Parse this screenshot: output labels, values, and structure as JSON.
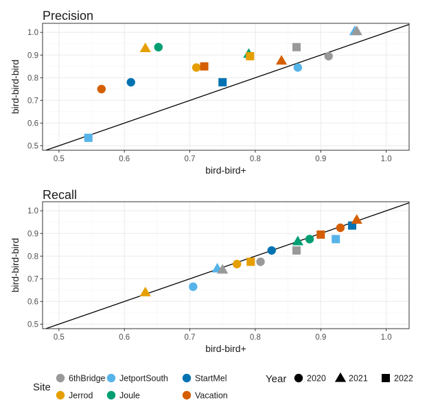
{
  "chart_data": [
    {
      "type": "scatter",
      "title": "Precision",
      "xlabel": "bird-bird+",
      "ylabel": "bird-bird-bird",
      "xlim": [
        0.475,
        1.035
      ],
      "ylim": [
        0.48,
        1.04
      ],
      "xticks": [
        0.5,
        0.6,
        0.7,
        0.8,
        0.9,
        1.0
      ],
      "xtick_labels": [
        "0.5",
        "0.6",
        "0.7",
        "0.8",
        "0.9",
        "1.0"
      ],
      "yticks": [
        0.5,
        0.6,
        0.7,
        0.8,
        0.9,
        1.0
      ],
      "ytick_labels": [
        "0.5",
        "0.6",
        "0.7",
        "0.8",
        "0.9",
        "1.0"
      ],
      "reference_line": "y = x",
      "points": [
        {
          "x": 0.545,
          "y": 0.535,
          "site": "JetportSouth",
          "year": "2022"
        },
        {
          "x": 0.565,
          "y": 0.75,
          "site": "Vacation",
          "year": "2020"
        },
        {
          "x": 0.61,
          "y": 0.78,
          "site": "StartMel",
          "year": "2020"
        },
        {
          "x": 0.632,
          "y": 0.93,
          "site": "Jerrod",
          "year": "2021"
        },
        {
          "x": 0.652,
          "y": 0.935,
          "site": "Joule",
          "year": "2020"
        },
        {
          "x": 0.71,
          "y": 0.845,
          "site": "Jerrod",
          "year": "2020"
        },
        {
          "x": 0.722,
          "y": 0.85,
          "site": "Vacation",
          "year": "2022"
        },
        {
          "x": 0.75,
          "y": 0.78,
          "site": "StartMel",
          "year": "2022"
        },
        {
          "x": 0.79,
          "y": 0.905,
          "site": "Joule",
          "year": "2021"
        },
        {
          "x": 0.792,
          "y": 0.895,
          "site": "Jerrod",
          "year": "2022"
        },
        {
          "x": 0.84,
          "y": 0.875,
          "site": "Vacation",
          "year": "2021"
        },
        {
          "x": 0.863,
          "y": 0.935,
          "site": "6thBridge",
          "year": "2022"
        },
        {
          "x": 0.865,
          "y": 0.845,
          "site": "JetportSouth",
          "year": "2020"
        },
        {
          "x": 0.912,
          "y": 0.895,
          "site": "6thBridge",
          "year": "2020"
        },
        {
          "x": 0.952,
          "y": 1.005,
          "site": "JetportSouth",
          "year": "2021"
        },
        {
          "x": 0.955,
          "y": 1.005,
          "site": "6thBridge",
          "year": "2021"
        }
      ]
    },
    {
      "type": "scatter",
      "title": "Recall",
      "xlabel": "bird-bird+",
      "ylabel": "bird-bird-bird",
      "xlim": [
        0.475,
        1.035
      ],
      "ylim": [
        0.48,
        1.04
      ],
      "xticks": [
        0.5,
        0.6,
        0.7,
        0.8,
        0.9,
        1.0
      ],
      "xtick_labels": [
        "0.5",
        "0.6",
        "0.7",
        "0.8",
        "0.9",
        "1.0"
      ],
      "yticks": [
        0.5,
        0.6,
        0.7,
        0.8,
        0.9,
        1.0
      ],
      "ytick_labels": [
        "0.5",
        "0.6",
        "0.7",
        "0.8",
        "0.9",
        "1.0"
      ],
      "reference_line": "y = x",
      "points": [
        {
          "x": 0.632,
          "y": 0.64,
          "site": "Jerrod",
          "year": "2021"
        },
        {
          "x": 0.705,
          "y": 0.665,
          "site": "JetportSouth",
          "year": "2020"
        },
        {
          "x": 0.742,
          "y": 0.745,
          "site": "JetportSouth",
          "year": "2021"
        },
        {
          "x": 0.75,
          "y": 0.74,
          "site": "6thBridge",
          "year": "2021"
        },
        {
          "x": 0.772,
          "y": 0.765,
          "site": "Jerrod",
          "year": "2020"
        },
        {
          "x": 0.793,
          "y": 0.775,
          "site": "Jerrod",
          "year": "2022"
        },
        {
          "x": 0.808,
          "y": 0.775,
          "site": "6thBridge",
          "year": "2020"
        },
        {
          "x": 0.825,
          "y": 0.825,
          "site": "StartMel",
          "year": "2020"
        },
        {
          "x": 0.863,
          "y": 0.825,
          "site": "6thBridge",
          "year": "2022"
        },
        {
          "x": 0.865,
          "y": 0.865,
          "site": "Joule",
          "year": "2021"
        },
        {
          "x": 0.883,
          "y": 0.875,
          "site": "Joule",
          "year": "2020"
        },
        {
          "x": 0.9,
          "y": 0.895,
          "site": "Vacation",
          "year": "2022"
        },
        {
          "x": 0.923,
          "y": 0.875,
          "site": "JetportSouth",
          "year": "2022"
        },
        {
          "x": 0.93,
          "y": 0.925,
          "site": "Vacation",
          "year": "2020"
        },
        {
          "x": 0.948,
          "y": 0.935,
          "site": "StartMel",
          "year": "2022"
        },
        {
          "x": 0.955,
          "y": 0.96,
          "site": "Vacation",
          "year": "2021"
        }
      ]
    }
  ],
  "legend": {
    "site_title": "Site",
    "sites": [
      {
        "name": "6thBridge",
        "color": "#999999"
      },
      {
        "name": "JetportSouth",
        "color": "#56B4E9"
      },
      {
        "name": "StartMel",
        "color": "#0072B2"
      },
      {
        "name": "Jerrod",
        "color": "#E69F00"
      },
      {
        "name": "Joule",
        "color": "#009E73"
      },
      {
        "name": "Vacation",
        "color": "#D55E00"
      }
    ],
    "year_title": "Year",
    "years": [
      {
        "name": "2020",
        "shape": "circle"
      },
      {
        "name": "2021",
        "shape": "triangle"
      },
      {
        "name": "2022",
        "shape": "square"
      }
    ]
  }
}
